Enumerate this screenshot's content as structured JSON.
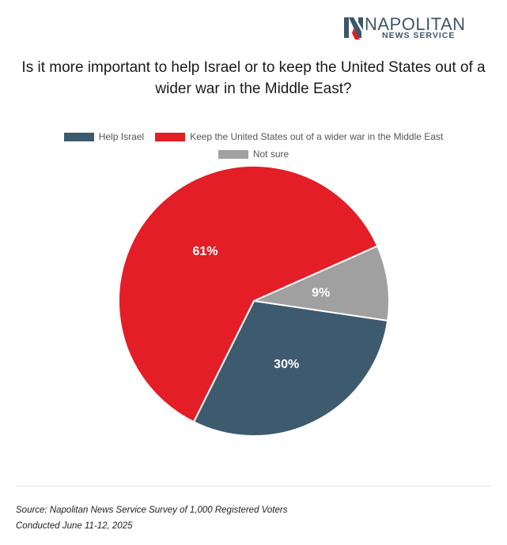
{
  "logo": {
    "name": "NAPOLITAN",
    "subtitle": "NEWS SERVICE",
    "icon": "napolitan-n-logo"
  },
  "chart_data": {
    "type": "pie",
    "title": "Is it more important to help Israel or to keep the United States out of a wider war in the Middle East?",
    "legend_position": "top",
    "slices": [
      {
        "name": "Help Israel",
        "value": 30,
        "label": "30%",
        "color": "#3e5a6e"
      },
      {
        "name": "Keep the United States out of a wider war in the Middle East",
        "value": 61,
        "label": "61%",
        "color": "#e31e26"
      },
      {
        "name": "Not sure",
        "value": 9,
        "label": "9%",
        "color": "#a0a0a0"
      }
    ]
  },
  "footer": {
    "source": "Source: Napolitan News Service Survey of 1,000 Registered Voters",
    "conducted": "Conducted June 11-12, 2025"
  }
}
